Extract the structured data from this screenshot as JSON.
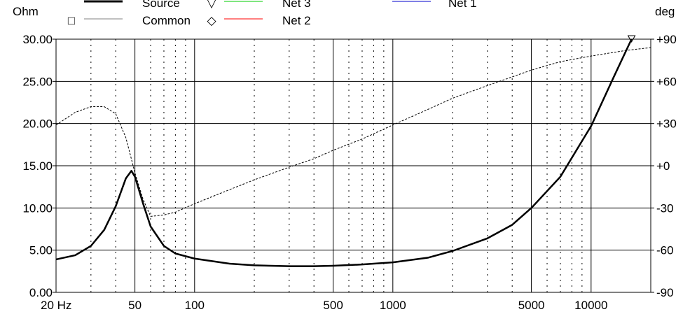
{
  "chart_data": {
    "type": "line",
    "title": "",
    "xlabel": "",
    "y_left_label": "Ohm",
    "y_right_label": "deg",
    "x_scale": "log",
    "x_range": [
      20,
      20000
    ],
    "x_tick_values": [
      20,
      50,
      100,
      500,
      1000,
      5000,
      10000
    ],
    "x_tick_labels": [
      "20 Hz",
      "50",
      "100",
      "500",
      "1000",
      "5000",
      "10000"
    ],
    "y_left_range": [
      0,
      30
    ],
    "y_left_ticks": [
      "0.00",
      "5.00",
      "10.00",
      "15.00",
      "20.00",
      "25.00",
      "30.00"
    ],
    "y_right_range": [
      -90,
      90
    ],
    "y_right_ticks": [
      "-90",
      "-60",
      "-30",
      "+0",
      "+30",
      "+60",
      "+90"
    ],
    "grid": true,
    "legend": [
      {
        "name": "Source",
        "color": "#000000",
        "marker": "",
        "style": "thick"
      },
      {
        "name": "Common",
        "color": "#808080",
        "marker": "□",
        "style": "thin"
      },
      {
        "name": "Net 3",
        "color": "#00cc00",
        "marker": "▽",
        "style": "thin"
      },
      {
        "name": "Net 2",
        "color": "#ff0000",
        "marker": "◇",
        "style": "thin"
      },
      {
        "name": "Net 1",
        "color": "#0000cc",
        "marker": "",
        "style": "thin"
      }
    ],
    "series": [
      {
        "name": "Source",
        "axis": "left",
        "points": [
          [
            20,
            3.9
          ],
          [
            25,
            4.4
          ],
          [
            30,
            5.5
          ],
          [
            35,
            7.4
          ],
          [
            40,
            10.2
          ],
          [
            45,
            13.5
          ],
          [
            48,
            14.4
          ],
          [
            50,
            13.7
          ],
          [
            55,
            10.5
          ],
          [
            60,
            7.8
          ],
          [
            70,
            5.5
          ],
          [
            80,
            4.6
          ],
          [
            100,
            4.0
          ],
          [
            150,
            3.4
          ],
          [
            200,
            3.2
          ],
          [
            300,
            3.1
          ],
          [
            400,
            3.1
          ],
          [
            500,
            3.15
          ],
          [
            700,
            3.3
          ],
          [
            1000,
            3.55
          ],
          [
            1500,
            4.1
          ],
          [
            2000,
            4.9
          ],
          [
            3000,
            6.4
          ],
          [
            4000,
            8.0
          ],
          [
            5000,
            10.0
          ],
          [
            7000,
            13.7
          ],
          [
            10000,
            19.7
          ],
          [
            13000,
            25.5
          ],
          [
            16000,
            30.0
          ]
        ]
      },
      {
        "name": "Common",
        "axis": "right",
        "style": "dashed",
        "points": [
          [
            20,
            29
          ],
          [
            25,
            38
          ],
          [
            30,
            42
          ],
          [
            35,
            42
          ],
          [
            40,
            37
          ],
          [
            45,
            20
          ],
          [
            50,
            -5
          ],
          [
            55,
            -24
          ],
          [
            60,
            -36
          ],
          [
            70,
            -35
          ],
          [
            80,
            -33
          ],
          [
            100,
            -27
          ],
          [
            150,
            -17
          ],
          [
            200,
            -10
          ],
          [
            300,
            -1
          ],
          [
            400,
            5
          ],
          [
            500,
            11
          ],
          [
            700,
            19
          ],
          [
            1000,
            29
          ],
          [
            1500,
            40
          ],
          [
            2000,
            48
          ],
          [
            3000,
            57
          ],
          [
            5000,
            68
          ],
          [
            7000,
            74
          ],
          [
            10000,
            78
          ],
          [
            15000,
            82
          ],
          [
            20000,
            84
          ]
        ]
      }
    ]
  }
}
